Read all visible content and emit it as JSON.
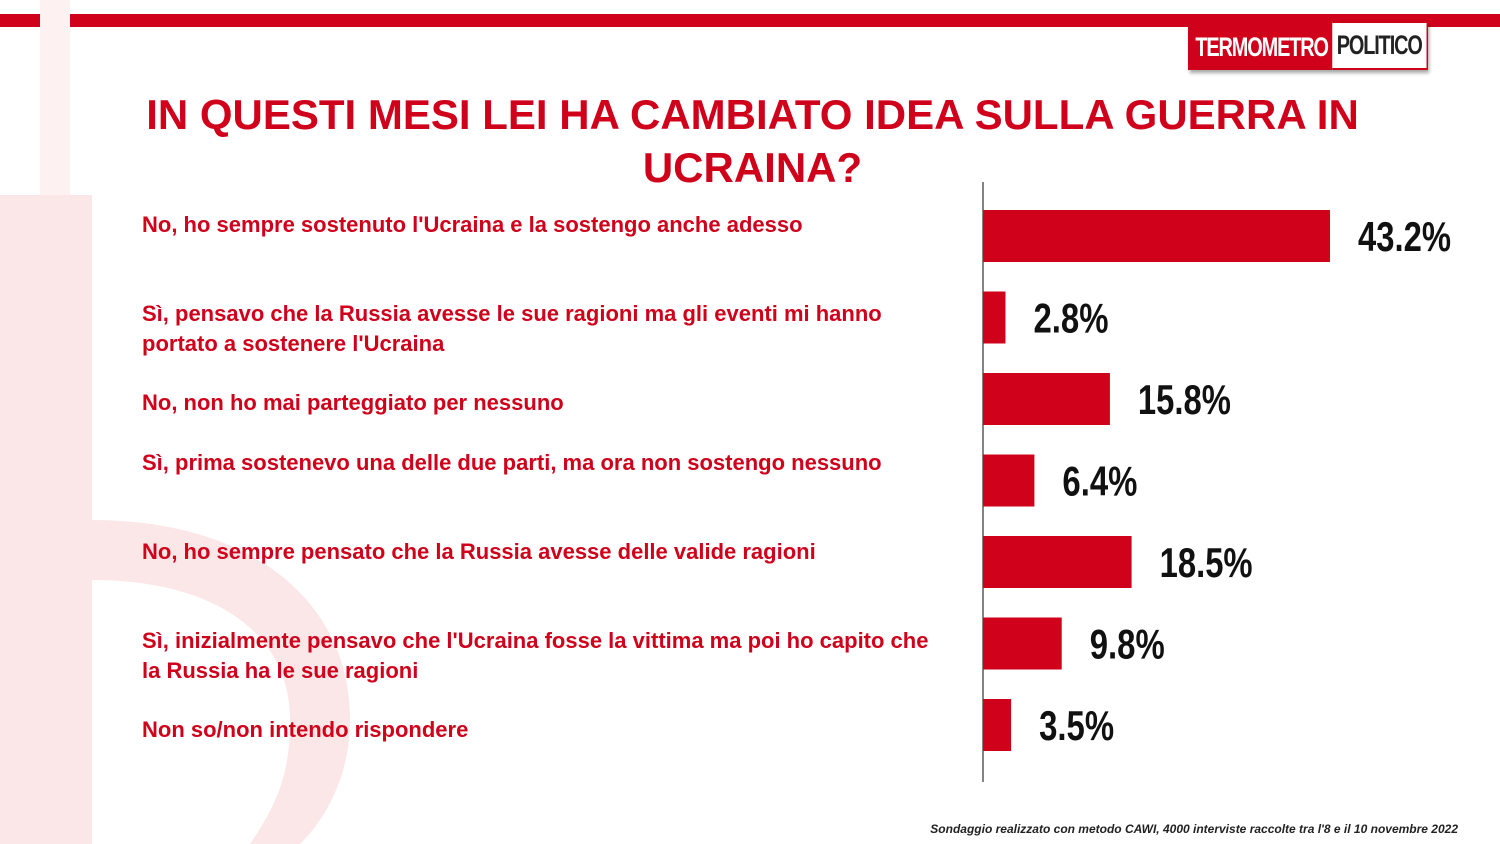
{
  "logo": {
    "part1": "TERMOMETRO",
    "part2": "POLITICO"
  },
  "title": "IN QUESTI MESI LEI HA CAMBIATO IDEA SULLA GUERRA IN UCRAINA?",
  "footer": "Sondaggio realizzato con metodo CAWI, 4000 interviste raccolte tra l'8 e il 10 novembre 2022",
  "colors": {
    "accent": "#d0021b"
  },
  "chart_data": {
    "type": "bar",
    "orientation": "horizontal",
    "categories": [
      "No, ho sempre sostenuto l'Ucraina e la sostengo anche adesso",
      "Sì, pensavo che la Russia avesse le sue ragioni ma gli eventi mi hanno portato a sostenere l'Ucraina",
      "No, non ho mai parteggiato per nessuno",
      "Sì, prima sostenevo una delle due parti, ma ora non sostengo nessuno",
      "No, ho sempre pensato che la Russia avesse delle valide ragioni",
      "Sì, inizialmente pensavo che l'Ucraina fosse la vittima ma poi ho capito che la Russia ha le sue ragioni",
      "Non so/non intendo rispondere"
    ],
    "values": [
      43.2,
      2.8,
      15.8,
      6.4,
      18.5,
      9.8,
      3.5
    ],
    "value_labels": [
      "43.2%",
      "2.8%",
      "15.8%",
      "6.4%",
      "18.5%",
      "9.8%",
      "3.5%"
    ],
    "xlim": [
      0,
      43.2
    ],
    "grid": false,
    "bar_color": "#d0021b"
  }
}
